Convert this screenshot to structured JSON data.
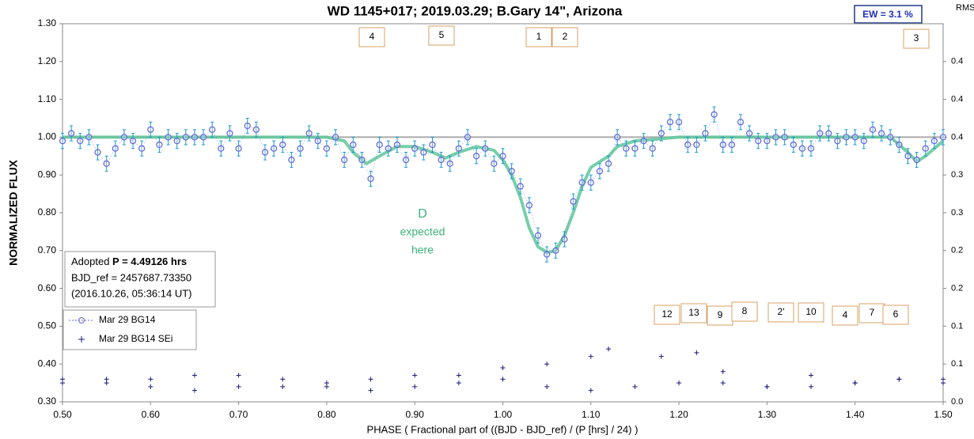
{
  "chart_data": {
    "type": "scatter",
    "title": "WD 1145+017; 2019.03.29; B.Gary 14\",  Arizona",
    "x_label": "PHASE ( Fractional part of ((BJD - BJD_ref) / (P [hrs] / 24) )",
    "y_label": "NORMALIZED FLUX",
    "y2_label": "RMS i",
    "ew_box": "EW =  3.1 %",
    "info": {
      "adopted": "Adopted ",
      "period": "P = 4.49126 hrs",
      "bjd": "BJD_ref = 2457687.73350",
      "date": "(2016.10.26, 05:36:14 UT)"
    },
    "note": [
      "D",
      "expected",
      "here"
    ],
    "annotations": [
      "4",
      "5",
      "1",
      "2",
      "3",
      "12",
      "13",
      "9",
      "8",
      "2'",
      "10",
      "4",
      "7",
      "6"
    ],
    "xlim": [
      0.5,
      1.5
    ],
    "xticks": [
      {
        "value": 0.5,
        "label": "0.50"
      },
      {
        "value": 0.6,
        "label": "0.60"
      },
      {
        "value": 0.7,
        "label": "0.70"
      },
      {
        "value": 0.8,
        "label": "0.80"
      },
      {
        "value": 0.9,
        "label": "0.90"
      },
      {
        "value": 1.0,
        "label": "1.00"
      },
      {
        "value": 1.1,
        "label": "1.10"
      },
      {
        "value": 1.2,
        "label": "1.20"
      },
      {
        "value": 1.3,
        "label": "1.30"
      },
      {
        "value": 1.4,
        "label": "1.40"
      },
      {
        "value": 1.5,
        "label": "1.50"
      }
    ],
    "ylim": [
      0.3,
      1.3
    ],
    "yticks": [
      {
        "value": 0.3,
        "label": "0.30"
      },
      {
        "value": 0.4,
        "label": "0.40"
      },
      {
        "value": 0.5,
        "label": "0.50"
      },
      {
        "value": 0.6,
        "label": "0.60"
      },
      {
        "value": 0.7,
        "label": "0.70"
      },
      {
        "value": 0.8,
        "label": "0.80"
      },
      {
        "value": 0.9,
        "label": "0.90"
      },
      {
        "value": 1.0,
        "label": "1.00"
      },
      {
        "value": 1.1,
        "label": "1.10"
      },
      {
        "value": 1.2,
        "label": "1.20"
      },
      {
        "value": 1.3,
        "label": "1.30"
      }
    ],
    "y2lim": [
      0,
      0.5
    ],
    "y2ticks": [
      {
        "value": 0,
        "label": "0.0"
      },
      {
        "value": 0.05,
        "label": "0.1"
      },
      {
        "value": 0.1,
        "label": "0.1"
      },
      {
        "value": 0.15,
        "label": "0.2"
      },
      {
        "value": 0.2,
        "label": "0.2"
      },
      {
        "value": 0.25,
        "label": "0.3"
      },
      {
        "value": 0.3,
        "label": "0.3"
      },
      {
        "value": 0.35,
        "label": "0.4"
      },
      {
        "value": 0.4,
        "label": "0.4"
      },
      {
        "value": 0.45,
        "label": "0.4"
      }
    ],
    "hline": 1,
    "series": [
      {
        "name": "Mar 29 BG14",
        "color": "#6a6ad8",
        "x": [
          0.5,
          0.51,
          0.52,
          0.53,
          0.54,
          0.55,
          0.56,
          0.57,
          0.58,
          0.59,
          0.6,
          0.61,
          0.62,
          0.63,
          0.64,
          0.65,
          0.66,
          0.67,
          0.68,
          0.69,
          0.7,
          0.71,
          0.72,
          0.73,
          0.74,
          0.75,
          0.76,
          0.77,
          0.78,
          0.79,
          0.8,
          0.81,
          0.82,
          0.83,
          0.84,
          0.85,
          0.86,
          0.87,
          0.88,
          0.89,
          0.9,
          0.91,
          0.92,
          0.93,
          0.94,
          0.95,
          0.96,
          0.97,
          0.98,
          0.99,
          1.0,
          1.01,
          1.02,
          1.03,
          1.04,
          1.05,
          1.06,
          1.07,
          1.08,
          1.09,
          1.1,
          1.11,
          1.12,
          1.13,
          1.14,
          1.15,
          1.16,
          1.17,
          1.18,
          1.19,
          1.2,
          1.21,
          1.22,
          1.23,
          1.24,
          1.25,
          1.26,
          1.27,
          1.28,
          1.29,
          1.3,
          1.31,
          1.32,
          1.33,
          1.34,
          1.35,
          1.36,
          1.37,
          1.38,
          1.39,
          1.4,
          1.41,
          1.42,
          1.43,
          1.44,
          1.45,
          1.46,
          1.47,
          1.48,
          1.49,
          1.5
        ],
        "values": [
          0.99,
          1.01,
          0.99,
          1.0,
          0.96,
          0.93,
          0.97,
          1.0,
          0.99,
          0.97,
          1.02,
          0.98,
          1.0,
          0.99,
          1.0,
          1.0,
          1.0,
          1.02,
          0.97,
          1.01,
          0.97,
          1.03,
          1.02,
          0.96,
          0.97,
          0.98,
          0.94,
          0.97,
          1.01,
          0.99,
          0.97,
          1.0,
          0.94,
          0.98,
          0.94,
          0.89,
          0.98,
          0.97,
          0.98,
          0.94,
          0.97,
          0.96,
          0.98,
          0.94,
          0.93,
          0.97,
          1.0,
          0.95,
          0.97,
          0.93,
          0.95,
          0.91,
          0.87,
          0.82,
          0.74,
          0.69,
          0.7,
          0.73,
          0.83,
          0.88,
          0.88,
          0.91,
          0.93,
          1.0,
          0.97,
          0.97,
          0.99,
          0.97,
          1.01,
          1.04,
          1.04,
          0.98,
          0.98,
          1.01,
          1.06,
          0.98,
          0.98,
          1.04,
          1.01,
          0.99,
          0.99,
          1.0,
          1.0,
          0.98,
          0.97,
          0.97,
          1.01,
          1.01,
          0.99,
          1.0,
          1.0,
          0.99,
          1.02,
          1.01,
          1.0,
          0.98,
          0.95,
          0.94,
          0.97,
          0.99,
          1.0
        ],
        "errors": [
          0.02,
          0.02,
          0.02,
          0.02,
          0.02,
          0.02,
          0.02,
          0.02,
          0.02,
          0.02,
          0.02,
          0.02,
          0.02,
          0.02,
          0.02,
          0.02,
          0.02,
          0.02,
          0.02,
          0.02,
          0.02,
          0.02,
          0.02,
          0.02,
          0.02,
          0.02,
          0.02,
          0.02,
          0.02,
          0.02,
          0.02,
          0.02,
          0.02,
          0.02,
          0.02,
          0.02,
          0.02,
          0.02,
          0.02,
          0.02,
          0.02,
          0.02,
          0.02,
          0.02,
          0.02,
          0.02,
          0.02,
          0.02,
          0.02,
          0.02,
          0.02,
          0.02,
          0.02,
          0.02,
          0.02,
          0.02,
          0.02,
          0.02,
          0.02,
          0.02,
          0.02,
          0.02,
          0.02,
          0.02,
          0.02,
          0.02,
          0.02,
          0.02,
          0.02,
          0.02,
          0.02,
          0.02,
          0.02,
          0.02,
          0.02,
          0.02,
          0.02,
          0.02,
          0.02,
          0.02,
          0.02,
          0.02,
          0.02,
          0.02,
          0.02,
          0.02,
          0.02,
          0.02,
          0.02,
          0.02,
          0.02,
          0.02,
          0.02,
          0.02,
          0.02,
          0.02,
          0.02,
          0.02,
          0.02,
          0.02,
          0.02
        ]
      },
      {
        "color": "#5ec79a",
        "x": [
          0.5,
          0.8,
          0.82,
          0.83,
          0.845,
          0.86,
          0.88,
          0.9,
          0.92,
          0.935,
          0.95,
          0.97,
          0.99,
          1.0,
          1.01,
          1.02,
          1.03,
          1.04,
          1.05,
          1.06,
          1.07,
          1.08,
          1.09,
          1.1,
          1.12,
          1.13,
          1.15,
          1.2,
          1.44,
          1.46,
          1.47,
          1.48,
          1.5
        ],
        "values": [
          1.0,
          1.0,
          0.99,
          0.96,
          0.93,
          0.95,
          0.975,
          0.975,
          0.96,
          0.945,
          0.96,
          0.975,
          0.965,
          0.94,
          0.9,
          0.84,
          0.76,
          0.71,
          0.695,
          0.7,
          0.74,
          0.8,
          0.87,
          0.92,
          0.95,
          0.975,
          0.99,
          1.0,
          1.0,
          0.96,
          0.935,
          0.95,
          0.99
        ]
      },
      {
        "name": "Mar 29 BG14 SEi",
        "color": "#1a1a7a",
        "axis": "y2",
        "x": [
          0.5,
          0.55,
          0.6,
          0.65,
          0.7,
          0.75,
          0.8,
          0.85,
          0.9,
          0.95,
          1.0,
          1.05,
          1.1,
          1.15,
          1.2,
          1.25,
          1.3,
          1.35,
          1.4,
          1.45,
          1.5,
          0.5,
          0.55,
          0.6,
          0.65,
          0.7,
          0.75,
          0.8,
          0.85,
          0.9,
          0.95,
          1.0,
          1.05,
          1.1,
          1.12,
          1.18,
          1.22,
          1.25,
          1.3,
          1.35,
          1.4,
          1.45,
          1.5
        ],
        "values": [
          0.03,
          0.025,
          0.02,
          0.015,
          0.02,
          0.02,
          0.02,
          0.015,
          0.02,
          0.025,
          0.03,
          0.02,
          0.015,
          0.02,
          0.025,
          0.025,
          0.02,
          0.035,
          0.025,
          0.03,
          0.03,
          0.025,
          0.03,
          0.03,
          0.035,
          0.035,
          0.03,
          0.025,
          0.03,
          0.035,
          0.035,
          0.045,
          0.05,
          0.06,
          0.07,
          0.06,
          0.065,
          0.04,
          0.02,
          0.02,
          0.025,
          0.03,
          0.025
        ]
      }
    ]
  }
}
